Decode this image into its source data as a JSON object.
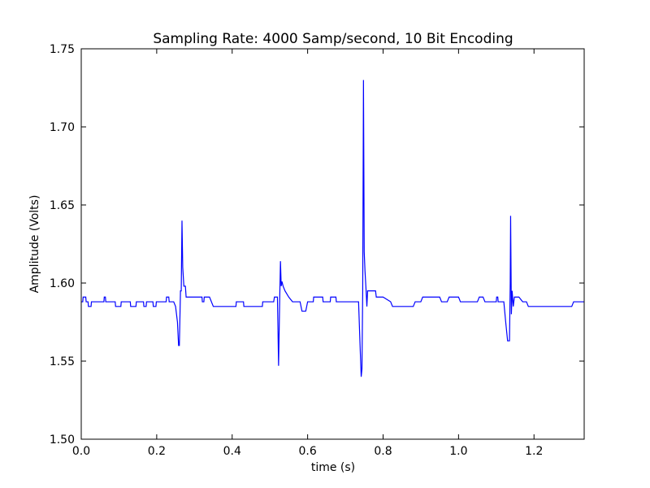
{
  "chart_data": {
    "type": "line",
    "title": "Sampling Rate: 4000 Samp/second, 10 Bit Encoding",
    "xlabel": "time (s)",
    "ylabel": "Amplitude (Volts)",
    "color": "#0000ff",
    "xlim": [
      0,
      1.333
    ],
    "ylim": [
      1.5,
      1.75
    ],
    "xticks": [
      {
        "value": 0,
        "label": "0.0"
      },
      0.2,
      0.4,
      0.6,
      0.8,
      {
        "value": 1,
        "label": "1.0"
      },
      1.2
    ],
    "yticks": [
      {
        "value": 1.5,
        "label": "1.50"
      },
      1.55,
      {
        "value": 1.6,
        "label": "1.60"
      },
      1.65,
      {
        "value": 1.7,
        "label": "1.70"
      },
      1.75
    ],
    "x": [
      0,
      0.004,
      0.005,
      0.012,
      0.013,
      0.018,
      0.019,
      0.026,
      0.027,
      0.06,
      0.061,
      0.064,
      0.065,
      0.09,
      0.091,
      0.105,
      0.106,
      0.13,
      0.131,
      0.145,
      0.146,
      0.165,
      0.166,
      0.172,
      0.173,
      0.19,
      0.191,
      0.198,
      0.199,
      0.225,
      0.226,
      0.232,
      0.233,
      0.245,
      0.25,
      0.255,
      0.258,
      0.26,
      0.263,
      0.265,
      0.267,
      0.269,
      0.272,
      0.276,
      0.278,
      0.32,
      0.321,
      0.325,
      0.326,
      0.34,
      0.35,
      0.41,
      0.411,
      0.43,
      0.431,
      0.48,
      0.481,
      0.51,
      0.512,
      0.52,
      0.523,
      0.526,
      0.528,
      0.53,
      0.532,
      0.535,
      0.54,
      0.55,
      0.56,
      0.58,
      0.585,
      0.595,
      0.6,
      0.615,
      0.616,
      0.64,
      0.641,
      0.66,
      0.661,
      0.675,
      0.676,
      0.735,
      0.739,
      0.742,
      0.744,
      0.746,
      0.748,
      0.75,
      0.752,
      0.755,
      0.757,
      0.759,
      0.78,
      0.782,
      0.8,
      0.82,
      0.825,
      0.88,
      0.885,
      0.9,
      0.905,
      0.95,
      0.955,
      0.97,
      0.975,
      1.0,
      1.005,
      1.05,
      1.055,
      1.065,
      1.07,
      1.1,
      1.101,
      1.104,
      1.105,
      1.12,
      1.125,
      1.13,
      1.135,
      1.137,
      1.138,
      1.14,
      1.142,
      1.145,
      1.148,
      1.16,
      1.17,
      1.18,
      1.185,
      1.3,
      1.305,
      1.333
    ],
    "values": [
      1.588,
      1.588,
      1.591,
      1.591,
      1.588,
      1.588,
      1.585,
      1.585,
      1.588,
      1.588,
      1.591,
      1.591,
      1.588,
      1.588,
      1.585,
      1.585,
      1.588,
      1.588,
      1.585,
      1.585,
      1.588,
      1.588,
      1.585,
      1.585,
      1.588,
      1.588,
      1.585,
      1.585,
      1.588,
      1.588,
      1.591,
      1.591,
      1.588,
      1.588,
      1.585,
      1.575,
      1.56,
      1.56,
      1.595,
      1.595,
      1.64,
      1.61,
      1.598,
      1.598,
      1.591,
      1.591,
      1.588,
      1.588,
      1.591,
      1.591,
      1.585,
      1.585,
      1.588,
      1.588,
      1.585,
      1.585,
      1.588,
      1.588,
      1.591,
      1.591,
      1.547,
      1.59,
      1.614,
      1.598,
      1.601,
      1.598,
      1.595,
      1.591,
      1.588,
      1.588,
      1.582,
      1.582,
      1.588,
      1.588,
      1.591,
      1.591,
      1.588,
      1.588,
      1.591,
      1.591,
      1.588,
      1.588,
      1.56,
      1.54,
      1.545,
      1.595,
      1.73,
      1.62,
      1.608,
      1.595,
      1.585,
      1.595,
      1.595,
      1.591,
      1.591,
      1.588,
      1.585,
      1.585,
      1.588,
      1.588,
      1.591,
      1.591,
      1.588,
      1.588,
      1.591,
      1.591,
      1.588,
      1.588,
      1.591,
      1.591,
      1.588,
      1.588,
      1.591,
      1.591,
      1.588,
      1.588,
      1.575,
      1.563,
      1.563,
      1.6,
      1.643,
      1.58,
      1.595,
      1.585,
      1.591,
      1.591,
      1.588,
      1.588,
      1.585,
      1.585,
      1.588,
      1.588
    ]
  }
}
